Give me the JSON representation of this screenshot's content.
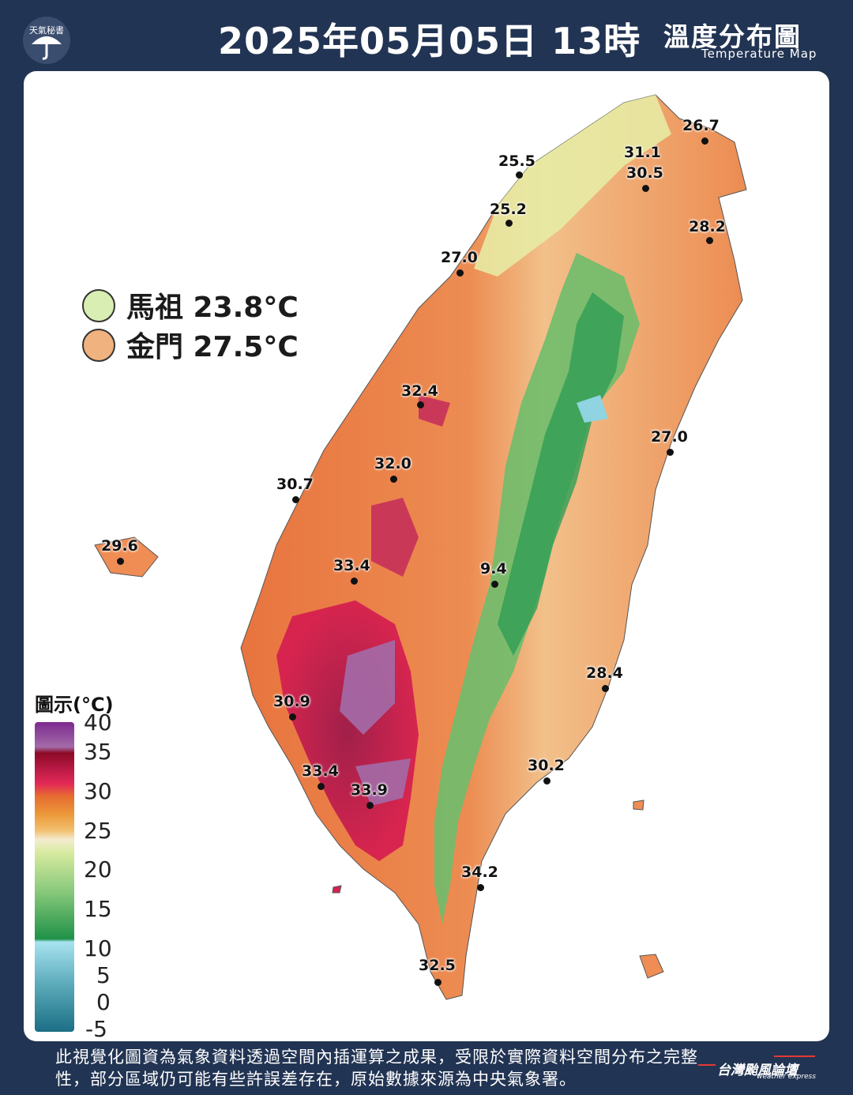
{
  "header": {
    "logo_text": "天氣秘書",
    "title": "2025年05月05日 13時",
    "map_title": "溫度分布圖",
    "map_title_en": "Temperature Map"
  },
  "islands": [
    {
      "name": "馬祖",
      "text": "馬祖 23.8°C",
      "color": "#d9eeb2"
    },
    {
      "name": "金門",
      "text": "金門 27.5°C",
      "color": "#f0b27e"
    }
  ],
  "stations": [
    {
      "id": "keelung-1",
      "value": "26.7"
    },
    {
      "id": "taipei-1",
      "value": "31.1"
    },
    {
      "id": "taipei-2",
      "value": "30.5"
    },
    {
      "id": "tamsui",
      "value": "25.5"
    },
    {
      "id": "taoyuan",
      "value": "25.2"
    },
    {
      "id": "hsinchu",
      "value": "27.0"
    },
    {
      "id": "yilan",
      "value": "28.2"
    },
    {
      "id": "taichung",
      "value": "32.4"
    },
    {
      "id": "hualien",
      "value": "27.0"
    },
    {
      "id": "changhua",
      "value": "32.0"
    },
    {
      "id": "wuqi",
      "value": "30.7"
    },
    {
      "id": "penghu",
      "value": "29.6"
    },
    {
      "id": "chiayi",
      "value": "33.4"
    },
    {
      "id": "yushan",
      "value": "9.4"
    },
    {
      "id": "chenggong",
      "value": "28.4"
    },
    {
      "id": "tainan",
      "value": "30.9"
    },
    {
      "id": "taitung",
      "value": "30.2"
    },
    {
      "id": "kaohsiung",
      "value": "33.4"
    },
    {
      "id": "pingtung-n",
      "value": "33.9"
    },
    {
      "id": "dawu",
      "value": "34.2"
    },
    {
      "id": "hengchun",
      "value": "32.5"
    }
  ],
  "colorbar": {
    "title": "圖示(°C)",
    "ticks": [
      "40",
      "35",
      "30",
      "25",
      "20",
      "15",
      "10",
      "5",
      "0",
      "-5"
    ]
  },
  "footer": {
    "note": "此視覺化圖資為氣象資料透過空間內插運算之成果，受限於實際資料空間分布之完整性，部分區域仍可能有些許誤差存在，原始數據來源為中央氣象署。",
    "logo": "台灣颱風論壇",
    "logo_en": "weather express"
  }
}
